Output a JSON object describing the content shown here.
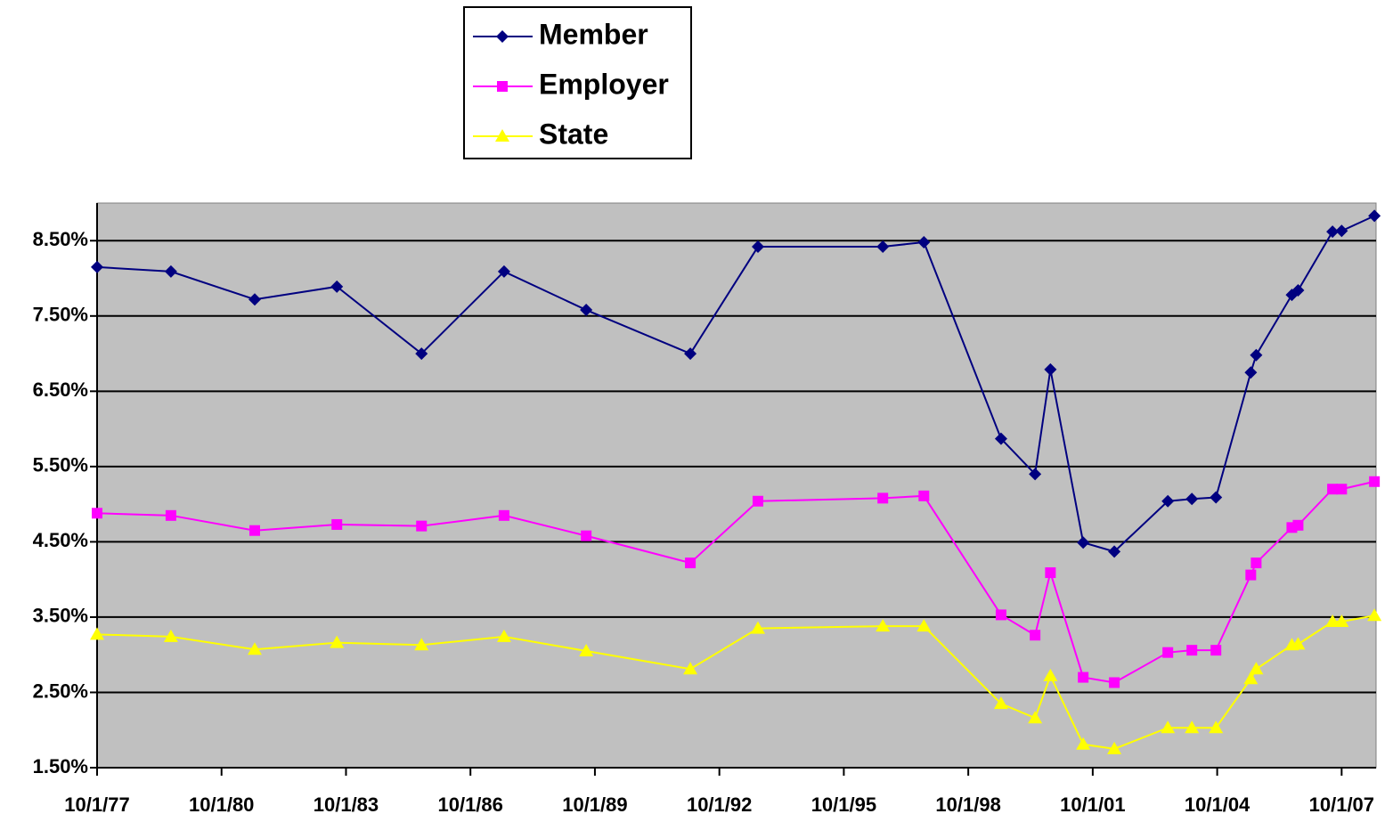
{
  "chart_data": {
    "type": "line",
    "x": [
      1977.75,
      1979.53,
      1981.55,
      1983.53,
      1985.57,
      1987.56,
      1989.54,
      1992.05,
      1993.68,
      1996.69,
      1997.68,
      1999.54,
      2000.36,
      2000.73,
      2001.52,
      2002.27,
      2003.56,
      2004.14,
      2004.72,
      2005.56,
      2005.69,
      2006.55,
      2006.7,
      2007.53,
      2007.75,
      2008.54
    ],
    "series": [
      {
        "name": "Member",
        "color": "#000080",
        "marker": "diamond",
        "values": [
          8.15,
          8.09,
          7.72,
          7.89,
          7.0,
          8.09,
          7.58,
          7.0,
          8.42,
          8.42,
          8.48,
          5.87,
          5.4,
          6.79,
          4.49,
          4.37,
          5.04,
          5.07,
          5.09,
          6.75,
          6.98,
          7.78,
          7.84,
          8.62,
          8.63,
          8.83
        ]
      },
      {
        "name": "Employer",
        "color": "#ff00ff",
        "marker": "square",
        "values": [
          4.88,
          4.85,
          4.65,
          4.73,
          4.71,
          4.85,
          4.58,
          4.22,
          5.04,
          5.08,
          5.11,
          3.53,
          3.26,
          4.09,
          2.7,
          2.63,
          3.03,
          3.06,
          3.06,
          4.06,
          4.22,
          4.69,
          4.72,
          5.2,
          5.2,
          5.3
        ]
      },
      {
        "name": "State",
        "color": "#ffff00",
        "marker": "triangle",
        "values": [
          3.27,
          3.24,
          3.07,
          3.16,
          3.13,
          3.24,
          3.05,
          2.81,
          3.35,
          3.38,
          3.38,
          2.35,
          2.16,
          2.72,
          1.81,
          1.75,
          2.03,
          2.03,
          2.03,
          2.68,
          2.81,
          3.13,
          3.14,
          3.44,
          3.44,
          3.52
        ]
      }
    ],
    "xlim": [
      1977.75,
      2008.58
    ],
    "xticks": [
      {
        "value": 1977.75,
        "label": "10/1/77"
      },
      {
        "value": 1980.75,
        "label": "10/1/80"
      },
      {
        "value": 1983.75,
        "label": "10/1/83"
      },
      {
        "value": 1986.75,
        "label": "10/1/86"
      },
      {
        "value": 1989.75,
        "label": "10/1/89"
      },
      {
        "value": 1992.75,
        "label": "10/1/92"
      },
      {
        "value": 1995.75,
        "label": "10/1/95"
      },
      {
        "value": 1998.75,
        "label": "10/1/98"
      },
      {
        "value": 2001.75,
        "label": "10/1/01"
      },
      {
        "value": 2004.75,
        "label": "10/1/04"
      },
      {
        "value": 2007.75,
        "label": "10/1/07"
      }
    ],
    "ylim": [
      1.5,
      9.0
    ],
    "yticks": [
      {
        "value": 1.5,
        "label": "1.50%"
      },
      {
        "value": 2.5,
        "label": "2.50%"
      },
      {
        "value": 3.5,
        "label": "3.50%"
      },
      {
        "value": 4.5,
        "label": "4.50%"
      },
      {
        "value": 5.5,
        "label": "5.50%"
      },
      {
        "value": 6.5,
        "label": "6.50%"
      },
      {
        "value": 7.5,
        "label": "7.50%"
      },
      {
        "value": 8.5,
        "label": "8.50%"
      }
    ],
    "grid": true,
    "plot_background": "#c0c0c0",
    "legend": "top"
  }
}
